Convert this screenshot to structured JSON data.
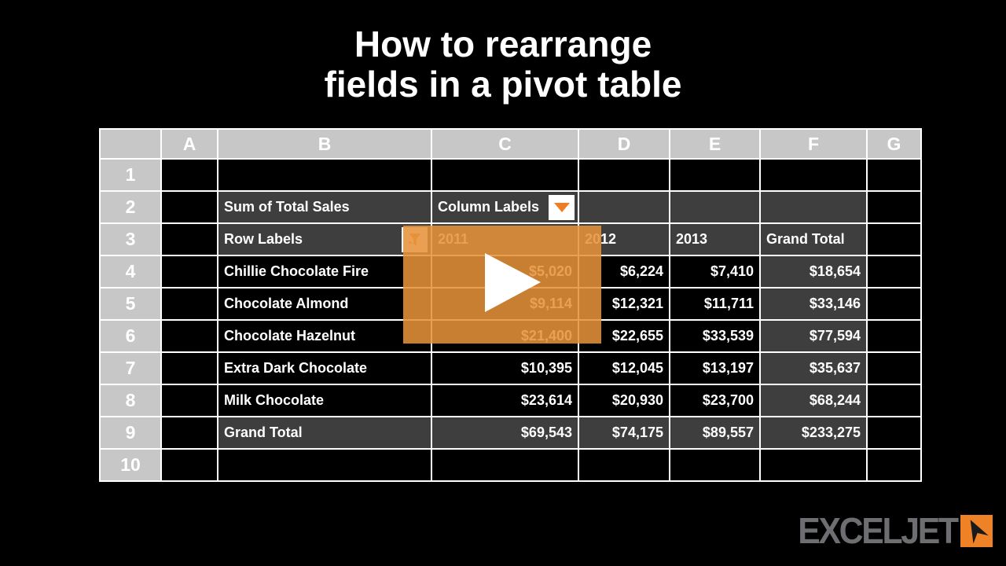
{
  "title": {
    "line1": "How to rearrange",
    "line2": "fields in a pivot table"
  },
  "colors": {
    "brand_orange": "#ef8227",
    "overlay_orange": "rgba(231,146,58,0.87)",
    "header_gray": "#c7c7c7",
    "cell_dark": "#3e3e3e",
    "cell_black": "#000000",
    "gridline_white": "#ffffff",
    "logo_gray": "#6d6e71"
  },
  "spreadsheet": {
    "col_headers": [
      "A",
      "B",
      "C",
      "D",
      "E",
      "F",
      "G"
    ],
    "rows": [
      {
        "num": "1",
        "cells": [
          {
            "bg": "black"
          },
          {
            "bg": "black"
          },
          {
            "bg": "black"
          },
          {
            "bg": "black"
          },
          {
            "bg": "black"
          },
          {
            "bg": "black"
          },
          {
            "bg": "black"
          }
        ]
      },
      {
        "num": "2",
        "cells": [
          {
            "bg": "black"
          },
          {
            "text": "Sum of Total Sales",
            "bg": "dark",
            "align": "left"
          },
          {
            "text": "Column Labels",
            "bg": "dark",
            "align": "left",
            "widget": "dropdown"
          },
          {
            "bg": "dark"
          },
          {
            "bg": "dark"
          },
          {
            "bg": "dark"
          },
          {
            "bg": "black"
          }
        ]
      },
      {
        "num": "3",
        "cells": [
          {
            "bg": "black"
          },
          {
            "text": "Row Labels",
            "bg": "dark",
            "align": "left",
            "widget": "filter"
          },
          {
            "text": "2011",
            "bg": "dark",
            "align": "left"
          },
          {
            "text": "2012",
            "bg": "dark",
            "align": "left"
          },
          {
            "text": "2013",
            "bg": "dark",
            "align": "left"
          },
          {
            "text": "Grand Total",
            "bg": "dark",
            "align": "left"
          },
          {
            "bg": "black"
          }
        ]
      },
      {
        "num": "4",
        "cells": [
          {
            "bg": "black"
          },
          {
            "text": "Chillie Chocolate Fire",
            "bg": "black",
            "align": "left"
          },
          {
            "text": "$5,020",
            "bg": "black",
            "align": "right"
          },
          {
            "text": "$6,224",
            "bg": "black",
            "align": "right"
          },
          {
            "text": "$7,410",
            "bg": "black",
            "align": "right"
          },
          {
            "text": "$18,654",
            "bg": "dark",
            "align": "right"
          },
          {
            "bg": "black"
          }
        ]
      },
      {
        "num": "5",
        "cells": [
          {
            "bg": "black"
          },
          {
            "text": "Chocolate Almond",
            "bg": "black",
            "align": "left"
          },
          {
            "text": "$9,114",
            "bg": "black",
            "align": "right"
          },
          {
            "text": "$12,321",
            "bg": "black",
            "align": "right"
          },
          {
            "text": "$11,711",
            "bg": "black",
            "align": "right"
          },
          {
            "text": "$33,146",
            "bg": "dark",
            "align": "right"
          },
          {
            "bg": "black"
          }
        ]
      },
      {
        "num": "6",
        "cells": [
          {
            "bg": "black"
          },
          {
            "text": "Chocolate Hazelnut",
            "bg": "black",
            "align": "left"
          },
          {
            "text": "$21,400",
            "bg": "black",
            "align": "right"
          },
          {
            "text": "$22,655",
            "bg": "black",
            "align": "right"
          },
          {
            "text": "$33,539",
            "bg": "black",
            "align": "right"
          },
          {
            "text": "$77,594",
            "bg": "dark",
            "align": "right"
          },
          {
            "bg": "black"
          }
        ]
      },
      {
        "num": "7",
        "cells": [
          {
            "bg": "black"
          },
          {
            "text": "Extra Dark Chocolate",
            "bg": "black",
            "align": "left"
          },
          {
            "text": "$10,395",
            "bg": "black",
            "align": "right"
          },
          {
            "text": "$12,045",
            "bg": "black",
            "align": "right"
          },
          {
            "text": "$13,197",
            "bg": "black",
            "align": "right"
          },
          {
            "text": "$35,637",
            "bg": "dark",
            "align": "right"
          },
          {
            "bg": "black"
          }
        ]
      },
      {
        "num": "8",
        "cells": [
          {
            "bg": "black"
          },
          {
            "text": "Milk Chocolate",
            "bg": "black",
            "align": "left"
          },
          {
            "text": "$23,614",
            "bg": "black",
            "align": "right"
          },
          {
            "text": "$20,930",
            "bg": "black",
            "align": "right"
          },
          {
            "text": "$23,700",
            "bg": "black",
            "align": "right"
          },
          {
            "text": "$68,244",
            "bg": "dark",
            "align": "right"
          },
          {
            "bg": "black"
          }
        ]
      },
      {
        "num": "9",
        "cells": [
          {
            "bg": "black"
          },
          {
            "text": "Grand Total",
            "bg": "dark",
            "align": "left"
          },
          {
            "text": "$69,543",
            "bg": "dark",
            "align": "right"
          },
          {
            "text": "$74,175",
            "bg": "dark",
            "align": "right"
          },
          {
            "text": "$89,557",
            "bg": "dark",
            "align": "right"
          },
          {
            "text": "$233,275",
            "bg": "dark",
            "align": "right"
          },
          {
            "bg": "black"
          }
        ]
      },
      {
        "num": "10",
        "cells": [
          {
            "bg": "black"
          },
          {
            "bg": "black"
          },
          {
            "bg": "black"
          },
          {
            "bg": "black"
          },
          {
            "bg": "black"
          },
          {
            "bg": "black"
          },
          {
            "bg": "black"
          }
        ]
      }
    ]
  },
  "video_overlay": {
    "play_icon": "play-icon"
  },
  "logo": {
    "text": "EXCELJET",
    "icon": "paper-plane-icon"
  }
}
